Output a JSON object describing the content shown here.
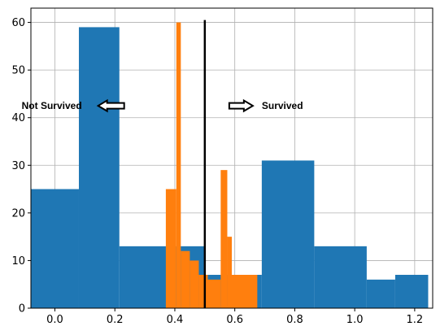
{
  "chart_data": {
    "type": "bar",
    "title": "",
    "xlabel": "",
    "ylabel": "",
    "xlim": [
      -0.08,
      1.26
    ],
    "ylim": [
      0,
      63
    ],
    "grid": true,
    "xticks": [
      0.0,
      0.2,
      0.4,
      0.6,
      0.8,
      1.0,
      1.2
    ],
    "xtick_labels": [
      "0.0",
      "0.2",
      "0.4",
      "0.6",
      "0.8",
      "1.0",
      "1.2"
    ],
    "yticks": [
      0,
      10,
      20,
      30,
      40,
      50,
      60
    ],
    "ytick_labels": [
      "0",
      "10",
      "20",
      "30",
      "40",
      "50",
      "60"
    ],
    "threshold": 0.5,
    "series": [
      {
        "color": "#1f77b4",
        "bins": [
          {
            "x0": -0.08,
            "x1": 0.08,
            "value": 25
          },
          {
            "x0": 0.08,
            "x1": 0.215,
            "value": 59
          },
          {
            "x0": 0.215,
            "x1": 0.39,
            "value": 13
          },
          {
            "x0": 0.39,
            "x1": 0.5,
            "value": 13
          },
          {
            "x0": 0.5,
            "x1": 0.69,
            "value": 7
          },
          {
            "x0": 0.69,
            "x1": 0.865,
            "value": 31
          },
          {
            "x0": 0.865,
            "x1": 1.04,
            "value": 13
          },
          {
            "x0": 1.04,
            "x1": 1.135,
            "value": 6
          },
          {
            "x0": 1.135,
            "x1": 1.245,
            "value": 7
          }
        ]
      },
      {
        "color": "#ff7f0e",
        "bins": [
          {
            "x0": 0.37,
            "x1": 0.405,
            "value": 25
          },
          {
            "x0": 0.405,
            "x1": 0.42,
            "value": 60
          },
          {
            "x0": 0.42,
            "x1": 0.45,
            "value": 12
          },
          {
            "x0": 0.45,
            "x1": 0.48,
            "value": 10
          },
          {
            "x0": 0.48,
            "x1": 0.51,
            "value": 7
          },
          {
            "x0": 0.51,
            "x1": 0.553,
            "value": 6
          },
          {
            "x0": 0.553,
            "x1": 0.575,
            "value": 29
          },
          {
            "x0": 0.575,
            "x1": 0.59,
            "value": 15
          },
          {
            "x0": 0.59,
            "x1": 0.675,
            "value": 7
          }
        ]
      }
    ],
    "annotations": [
      {
        "text": "Not Survived",
        "x": 0.09,
        "y": 42.5,
        "arrow": "left"
      },
      {
        "text": "Survived",
        "x": 0.69,
        "y": 42.5,
        "arrow": "right"
      }
    ]
  }
}
